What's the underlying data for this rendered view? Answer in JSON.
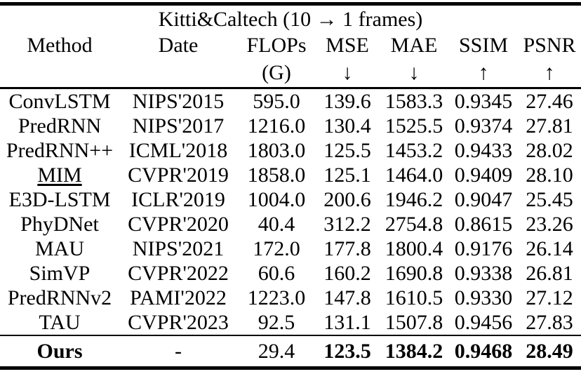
{
  "chart_data": {
    "type": "table",
    "title": "Kitti&Caltech (10 → 1 frames)",
    "columns": [
      {
        "key": "method",
        "label": "Method",
        "sub": ""
      },
      {
        "key": "date",
        "label": "Date",
        "sub": ""
      },
      {
        "key": "flops",
        "label": "FLOPs",
        "sub": "(G)"
      },
      {
        "key": "mse",
        "label": "MSE",
        "sub": "↓"
      },
      {
        "key": "mae",
        "label": "MAE",
        "sub": "↓"
      },
      {
        "key": "ssim",
        "label": "SSIM",
        "sub": "↑"
      },
      {
        "key": "psnr",
        "label": "PSNR",
        "sub": "↑"
      }
    ],
    "rows": [
      {
        "cells": [
          "ConvLSTM",
          "NIPS'2015",
          "595.0",
          "139.6",
          "1583.3",
          "0.9345",
          "27.46"
        ]
      },
      {
        "cells": [
          "PredRNN",
          "NIPS'2017",
          "1216.0",
          "130.4",
          "1525.5",
          "0.9374",
          "27.81"
        ]
      },
      {
        "cells": [
          "PredRNN++",
          "ICML'2018",
          "1803.0",
          "125.5",
          "1453.2",
          "0.9433",
          "28.02"
        ]
      },
      {
        "cells": [
          "MIM",
          "CVPR'2019",
          "1858.0",
          "125.1",
          "1464.0",
          "0.9409",
          "28.10"
        ],
        "underline_cells": [
          0
        ]
      },
      {
        "cells": [
          "E3D-LSTM",
          "ICLR'2019",
          "1004.0",
          "200.6",
          "1946.2",
          "0.9047",
          "25.45"
        ]
      },
      {
        "cells": [
          "PhyDNet",
          "CVPR'2020",
          "40.4",
          "312.2",
          "2754.8",
          "0.8615",
          "23.26"
        ]
      },
      {
        "cells": [
          "MAU",
          "NIPS'2021",
          "172.0",
          "177.8",
          "1800.4",
          "0.9176",
          "26.14"
        ]
      },
      {
        "cells": [
          "SimVP",
          "CVPR'2022",
          "60.6",
          "160.2",
          "1690.8",
          "0.9338",
          "26.81"
        ]
      },
      {
        "cells": [
          "PredRNNv2",
          "PAMI'2022",
          "1223.0",
          "147.8",
          "1610.5",
          "0.9330",
          "27.12"
        ]
      },
      {
        "cells": [
          "TAU",
          "CVPR'2023",
          "92.5",
          "131.1",
          "1507.8",
          "0.9456",
          "27.83"
        ]
      }
    ],
    "footer_row": {
      "cells": [
        "Ours",
        "-",
        "29.4",
        "123.5",
        "1384.2",
        "0.9468",
        "28.49"
      ],
      "bold_cells": [
        0,
        3,
        4,
        5,
        6
      ]
    },
    "colors": {
      "text": "#000000",
      "background": "#ffffff",
      "rule": "#000000"
    }
  }
}
